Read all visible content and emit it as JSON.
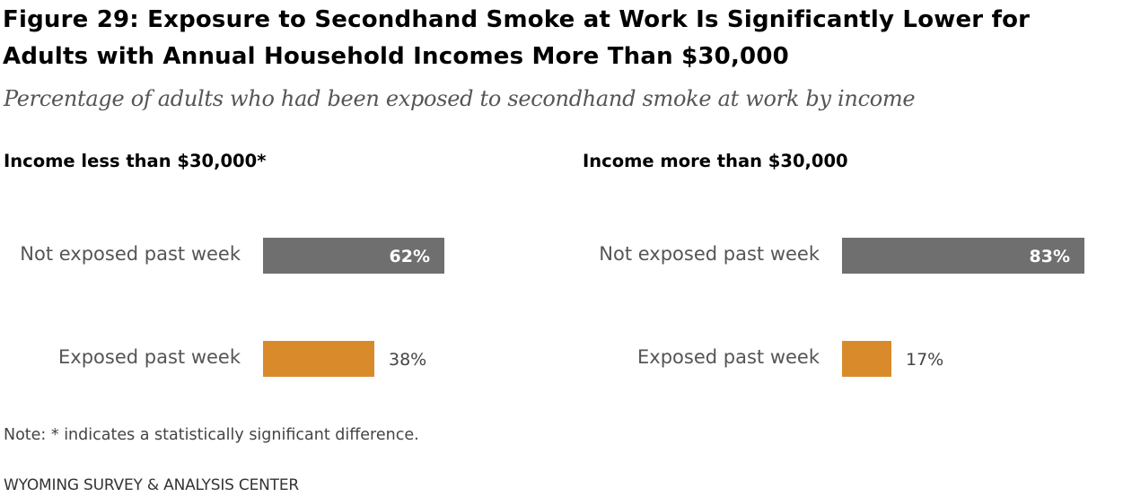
{
  "header": {
    "title": "Figure 29: Exposure to Secondhand Smoke at Work Is Significantly Lower for Adults with Annual Household Incomes More Than $30,000",
    "subtitle": "Percentage of adults who had been exposed to secondhand smoke at work by income"
  },
  "chart_data": [
    {
      "type": "bar",
      "orientation": "horizontal",
      "title": "Income less than $30,000*",
      "categories": [
        "Not exposed past week",
        "Exposed past week"
      ],
      "values": [
        62,
        38
      ],
      "value_labels": [
        "62%",
        "38%"
      ],
      "colors": [
        "#6f6f6f",
        "#d98b2b"
      ],
      "xlim": [
        0,
        100
      ]
    },
    {
      "type": "bar",
      "orientation": "horizontal",
      "title": "Income more than $30,000",
      "categories": [
        "Not exposed past week",
        "Exposed past week"
      ],
      "values": [
        83,
        17
      ],
      "value_labels": [
        "83%",
        "17%"
      ],
      "colors": [
        "#6f6f6f",
        "#d98b2b"
      ],
      "xlim": [
        0,
        100
      ]
    }
  ],
  "footer": {
    "note": "Note: * indicates a statistically significant difference.",
    "source": "WYOMING SURVEY & ANALYSIS CENTER"
  }
}
